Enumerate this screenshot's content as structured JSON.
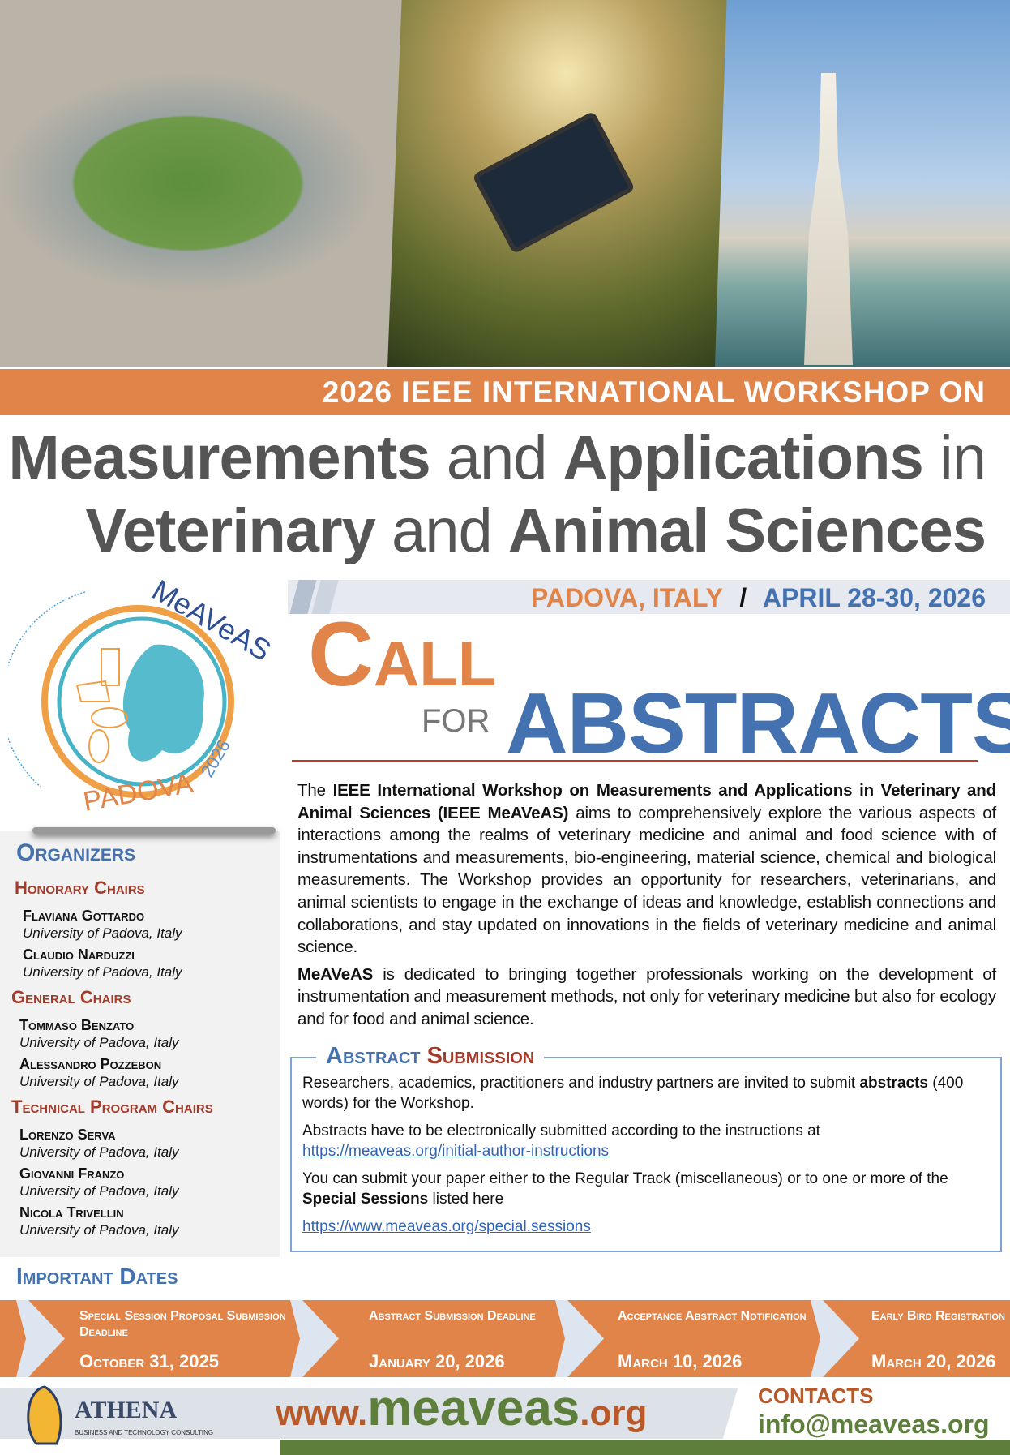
{
  "banner": "2026 IEEE INTERNATIONAL WORKSHOP ON",
  "title": {
    "l1a": "Measurements",
    "l1b": " and ",
    "l1c": "Applications",
    "l1d": " in",
    "l2a": "Veterinary",
    "l2b": " and ",
    "l2c": "Animal Sciences"
  },
  "location": {
    "place": "PADOVA, ITALY",
    "sep": "/",
    "dates": "APRIL 28-30, 2026"
  },
  "logo": {
    "name": "MeAVeAS",
    "city": "PADOVA",
    "year": "2026"
  },
  "cfa": {
    "call": "Call",
    "for": "FOR",
    "abstracts": "ABSTRACTS"
  },
  "intro": {
    "p1_pre": "The ",
    "p1_bold": "IEEE International Workshop on Measurements and Applications in Veterinary and Animal Sciences (IEEE MeAVeAS)",
    "p1_rest": " aims to comprehensively explore the various aspects of interactions among the realms of veterinary medicine and animal and food science with of instrumentations and measurements, bio-engineering, material science, chemical and biological measurements. The Workshop provides an opportunity for researchers, veterinarians, and animal scientists to engage in the exchange of ideas and knowledge, establish connections and collaborations, and stay updated on innovations in the fields of veterinary medicine and animal science.",
    "p2_bold": "MeAVeAS",
    "p2_rest": " is dedicated to bringing together professionals working on the development of instrumentation and measurement methods, not only for veterinary medicine but also for ecology and for food and animal science."
  },
  "organizers": {
    "heading": "Organizers",
    "groups": [
      {
        "title": "Honorary Chairs",
        "people": [
          {
            "name": "Flaviana Gottardo",
            "aff": "University of Padova, Italy"
          },
          {
            "name": "Claudio Narduzzi",
            "aff": "University of Padova, Italy"
          }
        ]
      },
      {
        "title": "General Chairs",
        "people": [
          {
            "name": "Tommaso Benzato",
            "aff": "University of Padova, Italy"
          },
          {
            "name": "Alessandro Pozzebon",
            "aff": "University of Padova, Italy"
          }
        ]
      },
      {
        "title": "Technical Program Chairs",
        "people": [
          {
            "name": "Lorenzo Serva",
            "aff": "University of Padova, Italy"
          },
          {
            "name": "Giovanni Franzo",
            "aff": "University of Padova, Italy"
          },
          {
            "name": "Nicola Trivellin",
            "aff": "University of Padova, Italy"
          }
        ]
      }
    ]
  },
  "submission": {
    "title_a": "Abstract",
    "title_b": "Submission",
    "t1": "Researchers, academics, practitioners and industry partners are invited to submit ",
    "t1b": "abstracts",
    "t1c": " (400 words) for the Workshop.",
    "t2": "Abstracts have to be electronically submitted according to the instructions at",
    "link1": "https://meaveas.org/initial-author-instructions",
    "t3": "You can submit your paper either to the Regular Track (miscellaneous) or to one or more of the ",
    "t3b": "Special Sessions",
    "t3c": " listed here",
    "link2": "https://www.meaveas.org/special.sessions"
  },
  "dates": {
    "heading": "Important Dates",
    "items": [
      {
        "label": "Special Session Proposal Submission Deadline",
        "date": "October 31, 2025"
      },
      {
        "label": "Abstract Submission Deadline",
        "date": "January 20, 2026"
      },
      {
        "label": "Acceptance Abstract Notification",
        "date": "March 10, 2026"
      },
      {
        "label": "Early Bird Registration",
        "date": "March 20, 2026"
      }
    ]
  },
  "footer": {
    "sponsor": "ATHENA",
    "sponsor_sub": "BUSINESS AND TECHNOLOGY CONSULTING",
    "www": "www.",
    "site": "meaveas",
    ".org": ".org",
    "contacts": "CONTACTS",
    "email": "info@meaveas.org"
  },
  "colors": {
    "orange": "#e0844a",
    "blue": "#4472b0",
    "red": "#a33a2a",
    "green": "#5e7f3c"
  }
}
